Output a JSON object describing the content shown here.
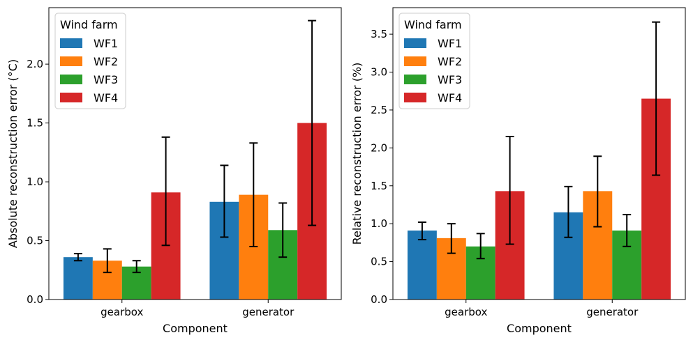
{
  "chart_data": [
    {
      "type": "bar",
      "categories": [
        "gearbox",
        "generator"
      ],
      "xlabel": "Component",
      "ylabel": "Absolute reconstruction error (°C)",
      "ylim": [
        0,
        2.48
      ],
      "yticks": [
        0.0,
        0.5,
        1.0,
        1.5,
        2.0
      ],
      "ytick_labels": [
        "0.0",
        "0.5",
        "1.0",
        "1.5",
        "2.0"
      ],
      "legend_title": "Wind farm",
      "legend_position": "top-left",
      "series": [
        {
          "name": "WF1",
          "color": "#1f77b4",
          "values": [
            0.36,
            0.83
          ],
          "err_low": [
            0.33,
            0.53
          ],
          "err_high": [
            0.39,
            1.14
          ]
        },
        {
          "name": "WF2",
          "color": "#ff7f0e",
          "values": [
            0.33,
            0.89
          ],
          "err_low": [
            0.23,
            0.45
          ],
          "err_high": [
            0.43,
            1.33
          ]
        },
        {
          "name": "WF3",
          "color": "#2ca02c",
          "values": [
            0.28,
            0.59
          ],
          "err_low": [
            0.23,
            0.36
          ],
          "err_high": [
            0.33,
            0.82
          ]
        },
        {
          "name": "WF4",
          "color": "#d62728",
          "values": [
            0.91,
            1.5
          ],
          "err_low": [
            0.46,
            0.63
          ],
          "err_high": [
            1.38,
            2.37
          ]
        }
      ]
    },
    {
      "type": "bar",
      "categories": [
        "gearbox",
        "generator"
      ],
      "xlabel": "Component",
      "ylabel": "Relative reconstruction error (%)",
      "ylim": [
        0,
        3.85
      ],
      "yticks": [
        0.0,
        0.5,
        1.0,
        1.5,
        2.0,
        2.5,
        3.0,
        3.5
      ],
      "ytick_labels": [
        "0.0",
        "0.5",
        "1.0",
        "1.5",
        "2.0",
        "2.5",
        "3.0",
        "3.5"
      ],
      "legend_title": "Wind farm",
      "legend_position": "top-left",
      "series": [
        {
          "name": "WF1",
          "color": "#1f77b4",
          "values": [
            0.91,
            1.15
          ],
          "err_low": [
            0.79,
            0.82
          ],
          "err_high": [
            1.02,
            1.49
          ]
        },
        {
          "name": "WF2",
          "color": "#ff7f0e",
          "values": [
            0.81,
            1.43
          ],
          "err_low": [
            0.61,
            0.96
          ],
          "err_high": [
            1.0,
            1.89
          ]
        },
        {
          "name": "WF3",
          "color": "#2ca02c",
          "values": [
            0.7,
            0.91
          ],
          "err_low": [
            0.54,
            0.7
          ],
          "err_high": [
            0.87,
            1.12
          ]
        },
        {
          "name": "WF4",
          "color": "#d62728",
          "values": [
            1.43,
            2.65
          ],
          "err_low": [
            0.73,
            1.64
          ],
          "err_high": [
            2.15,
            3.66
          ]
        }
      ]
    }
  ]
}
